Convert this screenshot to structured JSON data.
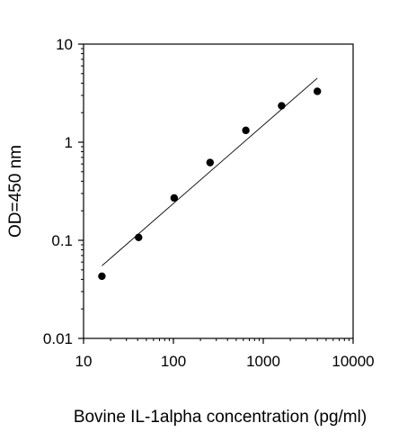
{
  "chart_data": {
    "type": "scatter",
    "title": "",
    "xlabel": "Bovine IL-1alpha concentration (pg/ml)",
    "ylabel": "OD=450 nm",
    "xscale": "log",
    "yscale": "log",
    "xlim": [
      10,
      10000
    ],
    "ylim": [
      0.01,
      10
    ],
    "xticks": [
      {
        "value": 10,
        "label": "10"
      },
      {
        "value": 100,
        "label": "100"
      },
      {
        "value": 1000,
        "label": "1000"
      },
      {
        "value": 10000,
        "label": "10000"
      }
    ],
    "yticks": [
      {
        "value": 0.01,
        "label": "0.01"
      },
      {
        "value": 0.1,
        "label": "0.1"
      },
      {
        "value": 1,
        "label": "1"
      },
      {
        "value": 10,
        "label": "10"
      }
    ],
    "grid": false,
    "legend": "none",
    "series": [
      {
        "x": [
          16,
          41,
          102,
          256,
          640,
          1600,
          4000
        ],
        "y": [
          0.043,
          0.107,
          0.27,
          0.62,
          1.32,
          2.35,
          3.3
        ]
      }
    ],
    "trendline": {
      "x": [
        16,
        4000
      ],
      "y": [
        0.055,
        4.5
      ]
    },
    "colors": {
      "marker": "#000000",
      "line": "#000000",
      "axis": "#000000"
    }
  }
}
